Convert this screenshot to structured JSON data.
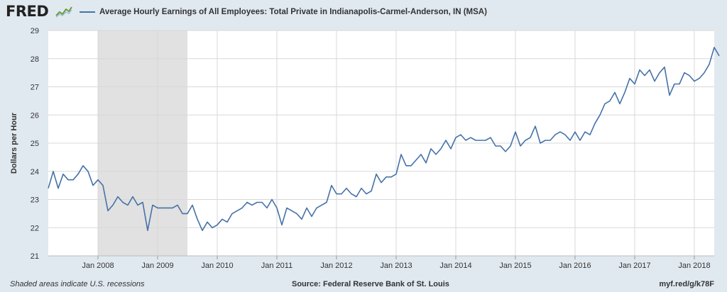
{
  "header": {
    "logo": "FRED",
    "logo_mark": "chart-line-icon"
  },
  "footer": {
    "note": "Shaded areas indicate U.S. recessions",
    "source": "Source: Federal Reserve Bank of St. Louis",
    "link": "myf.red/g/k78F"
  },
  "colors": {
    "line": "#4572a7",
    "plot_bg": "#ffffff",
    "page_bg": "#e1e9f0",
    "grid": "#d8d8d8",
    "recession": "#e1e1e1"
  },
  "chart_data": {
    "type": "line",
    "title": "",
    "xlabel": "",
    "ylabel": "Dollars per Hour",
    "ylim": [
      21,
      29
    ],
    "yticks": [
      21,
      22,
      23,
      24,
      25,
      26,
      27,
      28,
      29
    ],
    "xlim": [
      "2007-03",
      "2018-05"
    ],
    "xticks": [
      {
        "date": "2008-01",
        "label": "Jan 2008"
      },
      {
        "date": "2009-01",
        "label": "Jan 2009"
      },
      {
        "date": "2010-01",
        "label": "Jan 2010"
      },
      {
        "date": "2011-01",
        "label": "Jan 2011"
      },
      {
        "date": "2012-01",
        "label": "Jan 2012"
      },
      {
        "date": "2013-01",
        "label": "Jan 2013"
      },
      {
        "date": "2014-01",
        "label": "Jan 2014"
      },
      {
        "date": "2015-01",
        "label": "Jan 2015"
      },
      {
        "date": "2016-01",
        "label": "Jan 2016"
      },
      {
        "date": "2017-01",
        "label": "Jan 2017"
      },
      {
        "date": "2018-01",
        "label": "Jan 2018"
      }
    ],
    "grid": true,
    "legend": "top-left",
    "recessions": [
      {
        "start": "2008-01",
        "end": "2009-06"
      }
    ],
    "series": [
      {
        "name": "Average Hourly Earnings of All Employees: Total Private in Indianapolis-Carmel-Anderson, IN (MSA)",
        "start": "2007-03",
        "frequency": "monthly",
        "values": [
          23.4,
          24.0,
          23.4,
          23.9,
          23.7,
          23.7,
          23.9,
          24.2,
          24.0,
          23.5,
          23.7,
          23.5,
          22.6,
          22.8,
          23.1,
          22.9,
          22.8,
          23.1,
          22.8,
          22.9,
          21.9,
          22.8,
          22.7,
          22.7,
          22.7,
          22.7,
          22.8,
          22.5,
          22.5,
          22.8,
          22.3,
          21.9,
          22.2,
          22.0,
          22.1,
          22.3,
          22.2,
          22.5,
          22.6,
          22.7,
          22.9,
          22.8,
          22.9,
          22.9,
          22.7,
          23.0,
          22.7,
          22.1,
          22.7,
          22.6,
          22.5,
          22.3,
          22.7,
          22.4,
          22.7,
          22.8,
          22.9,
          23.5,
          23.2,
          23.2,
          23.4,
          23.2,
          23.1,
          23.4,
          23.2,
          23.3,
          23.9,
          23.6,
          23.8,
          23.8,
          23.9,
          24.6,
          24.2,
          24.2,
          24.4,
          24.6,
          24.3,
          24.8,
          24.6,
          24.8,
          25.1,
          24.8,
          25.2,
          25.3,
          25.1,
          25.2,
          25.1,
          25.1,
          25.1,
          25.2,
          24.9,
          24.9,
          24.7,
          24.9,
          25.4,
          24.9,
          25.1,
          25.2,
          25.6,
          25.0,
          25.1,
          25.1,
          25.3,
          25.4,
          25.3,
          25.1,
          25.4,
          25.1,
          25.4,
          25.3,
          25.7,
          26.0,
          26.4,
          26.5,
          26.8,
          26.4,
          26.8,
          27.3,
          27.1,
          27.6,
          27.4,
          27.6,
          27.2,
          27.5,
          27.7,
          26.7,
          27.1,
          27.1,
          27.5,
          27.4,
          27.2,
          27.3,
          27.5,
          27.8,
          28.4,
          28.1
        ]
      }
    ]
  }
}
